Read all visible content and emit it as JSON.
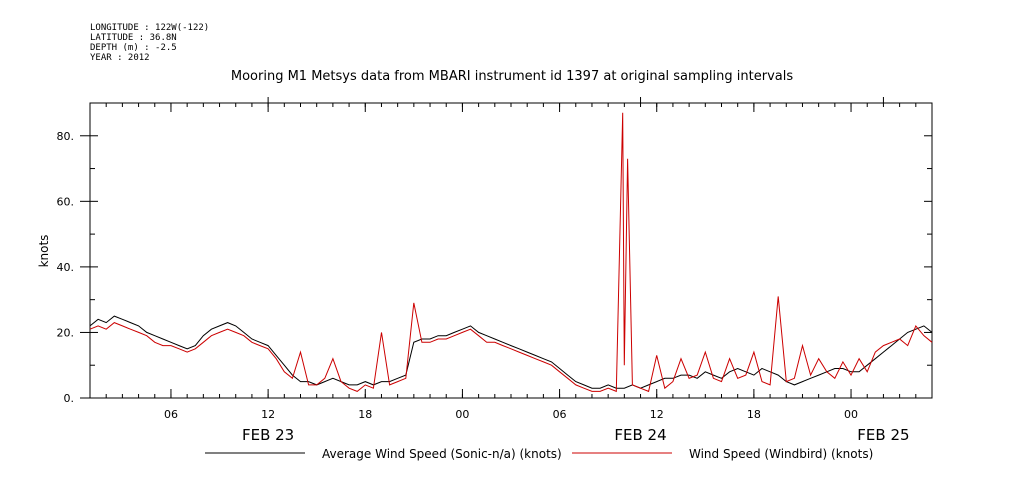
{
  "header": {
    "meta_lines": [
      "LONGITUDE : 122W(-122)",
      "LATITUDE : 36.8N",
      "DEPTH (m) : -2.5",
      "YEAR : 2012"
    ],
    "title": "Mooring M1 Metsys data from MBARI instrument id 1397 at original sampling intervals"
  },
  "chart_data": {
    "type": "line",
    "title": "Mooring M1 Metsys data from MBARI instrument id 1397 at original sampling intervals",
    "xlabel": "",
    "ylabel": "knots",
    "xlim_hours": [
      0,
      52
    ],
    "ylim": [
      0,
      90
    ],
    "y_ticks": [
      0,
      20,
      40,
      60,
      80
    ],
    "y_tick_labels": [
      "0.",
      "20.",
      "40.",
      "60.",
      "80."
    ],
    "x_ticks": [
      {
        "hour": 5,
        "label": "06"
      },
      {
        "hour": 11,
        "label": "12"
      },
      {
        "hour": 17,
        "label": "18"
      },
      {
        "hour": 23,
        "label": "00"
      },
      {
        "hour": 29,
        "label": "06"
      },
      {
        "hour": 35,
        "label": "12"
      },
      {
        "hour": 41,
        "label": "18"
      },
      {
        "hour": 47,
        "label": "00"
      }
    ],
    "date_labels": [
      {
        "hour": 11,
        "label": "FEB 23"
      },
      {
        "hour": 34,
        "label": "FEB 24"
      },
      {
        "hour": 49,
        "label": "FEB 25"
      }
    ],
    "grid": false,
    "legend_placement": "bottom",
    "series": [
      {
        "name": "Average Wind Speed (Sonic-n/a) (knots)",
        "color": "#000000",
        "x": [
          0,
          0.5,
          1,
          1.5,
          2,
          2.5,
          3,
          3.5,
          4,
          4.5,
          5,
          5.5,
          6,
          6.5,
          7,
          7.5,
          8,
          8.5,
          9,
          9.5,
          10,
          10.5,
          11,
          11.5,
          12,
          12.5,
          13,
          13.5,
          14,
          14.5,
          15,
          15.5,
          16,
          16.5,
          17,
          17.5,
          18,
          18.5,
          19,
          19.5,
          20,
          20.5,
          21,
          21.5,
          22,
          22.5,
          23,
          23.5,
          24,
          24.5,
          25,
          25.5,
          26,
          26.5,
          27,
          27.5,
          28,
          28.5,
          29,
          29.5,
          30,
          30.5,
          31,
          31.5,
          32,
          32.5,
          33,
          33.5,
          34,
          34.5,
          35,
          35.5,
          36,
          36.5,
          37,
          37.5,
          38,
          38.5,
          39,
          39.5,
          40,
          40.5,
          41,
          41.5,
          42,
          42.5,
          43,
          43.5,
          44,
          44.5,
          45,
          45.5,
          46,
          46.5,
          47,
          47.5,
          48,
          48.5,
          49,
          49.5,
          50,
          50.5,
          51,
          51.5,
          52
        ],
        "values": [
          22,
          24,
          23,
          25,
          24,
          23,
          22,
          20,
          19,
          18,
          17,
          16,
          15,
          16,
          19,
          21,
          22,
          23,
          22,
          20,
          18,
          17,
          16,
          13,
          10,
          7,
          5,
          5,
          4,
          5,
          6,
          5,
          4,
          4,
          5,
          4,
          5,
          5,
          6,
          7,
          17,
          18,
          18,
          19,
          19,
          20,
          21,
          22,
          20,
          19,
          18,
          17,
          16,
          15,
          14,
          13,
          12,
          11,
          9,
          7,
          5,
          4,
          3,
          3,
          4,
          3,
          3,
          4,
          3,
          4,
          5,
          6,
          6,
          7,
          7,
          6,
          8,
          7,
          6,
          8,
          9,
          8,
          7,
          9,
          8,
          7,
          5,
          4,
          5,
          6,
          7,
          8,
          9,
          9,
          8,
          8,
          10,
          12,
          14,
          16,
          18,
          20,
          21,
          22,
          20
        ]
      },
      {
        "name": "Wind Speed (Windbird) (knots)",
        "color": "#cc0000",
        "x": [
          0,
          0.5,
          1,
          1.5,
          2,
          2.5,
          3,
          3.5,
          4,
          4.5,
          5,
          5.5,
          6,
          6.5,
          7,
          7.5,
          8,
          8.5,
          9,
          9.5,
          10,
          10.5,
          11,
          11.5,
          12,
          12.5,
          13,
          13.5,
          14,
          14.5,
          15,
          15.5,
          16,
          16.5,
          17,
          17.5,
          18,
          18.5,
          19,
          19.5,
          20,
          20.5,
          21,
          21.5,
          22,
          22.5,
          23,
          23.5,
          24,
          24.5,
          25,
          25.5,
          26,
          26.5,
          27,
          27.5,
          28,
          28.5,
          29,
          29.5,
          30,
          30.5,
          31,
          31.5,
          32,
          32.5,
          32.9,
          33,
          33.2,
          33.5,
          34,
          34.5,
          35,
          35.5,
          36,
          36.5,
          37,
          37.5,
          38,
          38.5,
          39,
          39.5,
          40,
          40.5,
          41,
          41.5,
          42,
          42.5,
          43,
          43.5,
          44,
          44.5,
          45,
          45.5,
          46,
          46.5,
          47,
          47.5,
          48,
          48.5,
          49,
          49.5,
          50,
          50.5,
          51,
          51.5,
          52
        ],
        "values": [
          21,
          22,
          21,
          23,
          22,
          21,
          20,
          19,
          17,
          16,
          16,
          15,
          14,
          15,
          17,
          19,
          20,
          21,
          20,
          19,
          17,
          16,
          15,
          12,
          8,
          6,
          14,
          4,
          4,
          6,
          12,
          5,
          3,
          2,
          4,
          3,
          20,
          4,
          5,
          6,
          29,
          17,
          17,
          18,
          18,
          19,
          20,
          21,
          19,
          17,
          17,
          16,
          15,
          14,
          13,
          12,
          11,
          10,
          8,
          6,
          4,
          3,
          2,
          2,
          3,
          2,
          87,
          10,
          73,
          4,
          3,
          2,
          13,
          3,
          5,
          12,
          6,
          7,
          14,
          6,
          5,
          12,
          6,
          7,
          14,
          5,
          4,
          31,
          5,
          6,
          16,
          7,
          12,
          8,
          6,
          11,
          7,
          12,
          8,
          14,
          16,
          17,
          18,
          16,
          22,
          19,
          17
        ]
      }
    ]
  },
  "legend": [
    {
      "label": "Average Wind Speed (Sonic-n/a) (knots)",
      "color": "#000000"
    },
    {
      "label": "Wind Speed (Windbird) (knots)",
      "color": "#cc0000"
    }
  ]
}
